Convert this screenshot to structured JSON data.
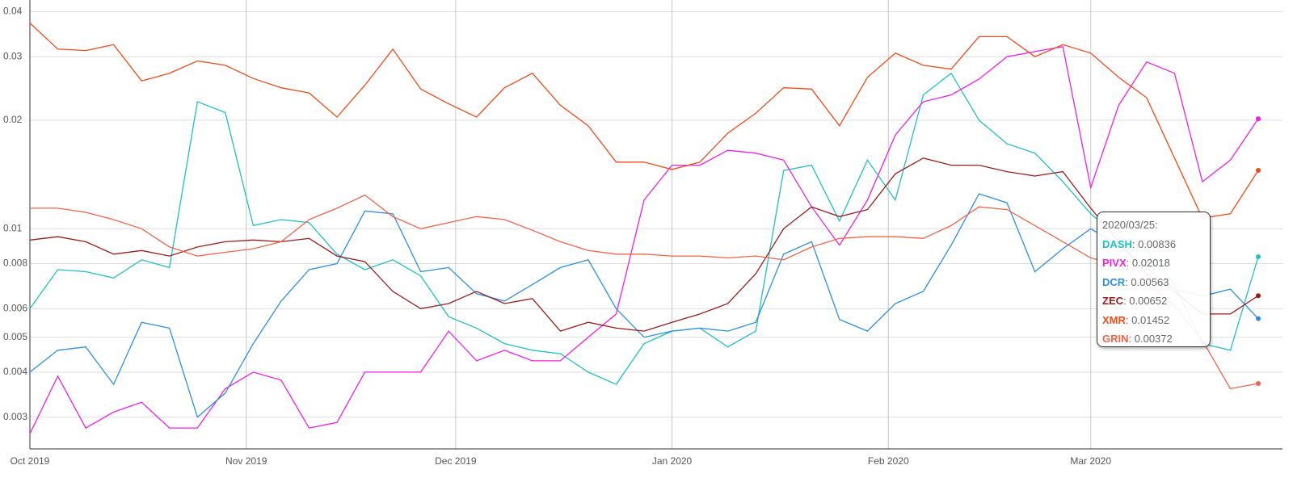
{
  "chart_data": {
    "type": "line",
    "log_y": true,
    "grid": true,
    "x": [
      "2019/10/01",
      "2019/10/05",
      "2019/10/09",
      "2019/10/13",
      "2019/10/17",
      "2019/10/21",
      "2019/10/25",
      "2019/10/29",
      "2019/11/02",
      "2019/11/06",
      "2019/11/10",
      "2019/11/14",
      "2019/11/18",
      "2019/11/22",
      "2019/11/26",
      "2019/11/30",
      "2019/12/04",
      "2019/12/08",
      "2019/12/12",
      "2019/12/16",
      "2019/12/20",
      "2019/12/24",
      "2019/12/28",
      "2020/01/01",
      "2020/01/05",
      "2020/01/09",
      "2020/01/13",
      "2020/01/17",
      "2020/01/21",
      "2020/01/25",
      "2020/01/29",
      "2020/02/02",
      "2020/02/06",
      "2020/02/10",
      "2020/02/14",
      "2020/02/18",
      "2020/02/22",
      "2020/02/26",
      "2020/03/01",
      "2020/03/05",
      "2020/03/09",
      "2020/03/13",
      "2020/03/17",
      "2020/03/21",
      "2020/03/25"
    ],
    "xlim": [
      "2019/10/01",
      "2020/03/25"
    ],
    "xticks": [
      {
        "value": "2019/10/01",
        "label": "Oct 2019"
      },
      {
        "value": "2019/11/01",
        "label": "Nov 2019"
      },
      {
        "value": "2019/12/01",
        "label": "Dec 2019"
      },
      {
        "value": "2020/01/01",
        "label": "Jan 2020"
      },
      {
        "value": "2020/02/01",
        "label": "Feb 2020"
      },
      {
        "value": "2020/03/01",
        "label": "Mar 2020"
      }
    ],
    "ylim": [
      0.00245,
      0.042
    ],
    "yticks": [
      0.003,
      0.004,
      0.005,
      0.006,
      0.008,
      0.01,
      0.02,
      0.03,
      0.04
    ],
    "series": [
      {
        "name": "DASH",
        "color": "#1ec2c2",
        "values": [
          0.006,
          0.0077,
          0.0076,
          0.0073,
          0.0082,
          0.0078,
          0.0225,
          0.021,
          0.0102,
          0.0106,
          0.0104,
          0.0085,
          0.0077,
          0.0082,
          0.0074,
          0.0057,
          0.0053,
          0.0048,
          0.0046,
          0.0045,
          0.004,
          0.0037,
          0.0048,
          0.0052,
          0.0053,
          0.0047,
          0.0052,
          0.0145,
          0.015,
          0.0105,
          0.0155,
          0.012,
          0.0235,
          0.027,
          0.02,
          0.0172,
          0.0162,
          0.0135,
          0.011,
          0.0095,
          0.0088,
          0.007,
          0.0048,
          0.0046,
          0.00836
        ]
      },
      {
        "name": "PIVX",
        "color": "#f21fe6",
        "values": [
          0.0027,
          0.0039,
          0.0028,
          0.0031,
          0.0033,
          0.0028,
          0.0028,
          0.0036,
          0.004,
          0.0038,
          0.0028,
          0.0029,
          0.004,
          0.004,
          0.004,
          0.0052,
          0.0043,
          0.0046,
          0.0043,
          0.0043,
          0.005,
          0.0058,
          0.012,
          0.015,
          0.015,
          0.0165,
          0.0162,
          0.0155,
          0.0115,
          0.009,
          0.012,
          0.0182,
          0.0225,
          0.0235,
          0.026,
          0.03,
          0.031,
          0.032,
          0.013,
          0.022,
          0.029,
          0.027,
          0.0135,
          0.0155,
          0.02018
        ]
      },
      {
        "name": "DCR",
        "color": "#2b8fe6",
        "values": [
          0.004,
          0.0046,
          0.0047,
          0.0037,
          0.0055,
          0.0053,
          0.003,
          0.0035,
          0.0048,
          0.0063,
          0.0077,
          0.008,
          0.0112,
          0.011,
          0.0076,
          0.0078,
          0.0066,
          0.0063,
          0.007,
          0.0078,
          0.0082,
          0.006,
          0.005,
          0.0052,
          0.0053,
          0.0052,
          0.0055,
          0.0085,
          0.0092,
          0.0056,
          0.0052,
          0.0062,
          0.0067,
          0.009,
          0.0125,
          0.0118,
          0.0076,
          0.0088,
          0.01,
          0.009,
          0.0078,
          0.0068,
          0.0065,
          0.0068,
          0.00563
        ]
      },
      {
        "name": "ZEC",
        "color": "#9c1c1c",
        "values": [
          0.0093,
          0.0095,
          0.0092,
          0.0085,
          0.0087,
          0.0084,
          0.0089,
          0.0092,
          0.0093,
          0.0092,
          0.0094,
          0.0084,
          0.0081,
          0.0067,
          0.006,
          0.0062,
          0.0067,
          0.0062,
          0.0064,
          0.0052,
          0.0055,
          0.0053,
          0.0052,
          0.0055,
          0.0058,
          0.0062,
          0.0075,
          0.01,
          0.0115,
          0.0108,
          0.0113,
          0.0142,
          0.0157,
          0.015,
          0.015,
          0.0144,
          0.014,
          0.0144,
          0.0114,
          0.0092,
          0.0075,
          0.0067,
          0.0058,
          0.0058,
          0.00652
        ]
      },
      {
        "name": "XMR",
        "color": "#f24a16",
        "values": [
          0.0372,
          0.0315,
          0.0312,
          0.0324,
          0.0257,
          0.027,
          0.0292,
          0.0284,
          0.0261,
          0.0246,
          0.0238,
          0.0204,
          0.025,
          0.0315,
          0.0244,
          0.0222,
          0.0204,
          0.0246,
          0.027,
          0.022,
          0.0193,
          0.0153,
          0.0153,
          0.0146,
          0.0153,
          0.0184,
          0.0209,
          0.0246,
          0.0244,
          0.0193,
          0.0263,
          0.0307,
          0.0284,
          0.0277,
          0.0341,
          0.0341,
          0.03,
          0.0324,
          0.0307,
          0.0263,
          0.0231,
          0.0157,
          0.0107,
          0.011,
          0.01452
        ]
      },
      {
        "name": "GRIN",
        "color": "#f26448",
        "values": [
          0.0114,
          0.0114,
          0.0111,
          0.0106,
          0.01,
          0.0089,
          0.0084,
          0.0086,
          0.0088,
          0.0092,
          0.0106,
          0.0114,
          0.0124,
          0.0108,
          0.01,
          0.0104,
          0.0108,
          0.0106,
          0.0099,
          0.0092,
          0.0087,
          0.0085,
          0.0085,
          0.0084,
          0.0084,
          0.0083,
          0.0084,
          0.0082,
          0.0089,
          0.0094,
          0.0095,
          0.0095,
          0.0094,
          0.0102,
          0.0115,
          0.0113,
          0.0102,
          0.0092,
          0.0083,
          0.0079,
          0.0071,
          0.0061,
          0.0049,
          0.0036,
          0.00372
        ]
      }
    ]
  }
}
